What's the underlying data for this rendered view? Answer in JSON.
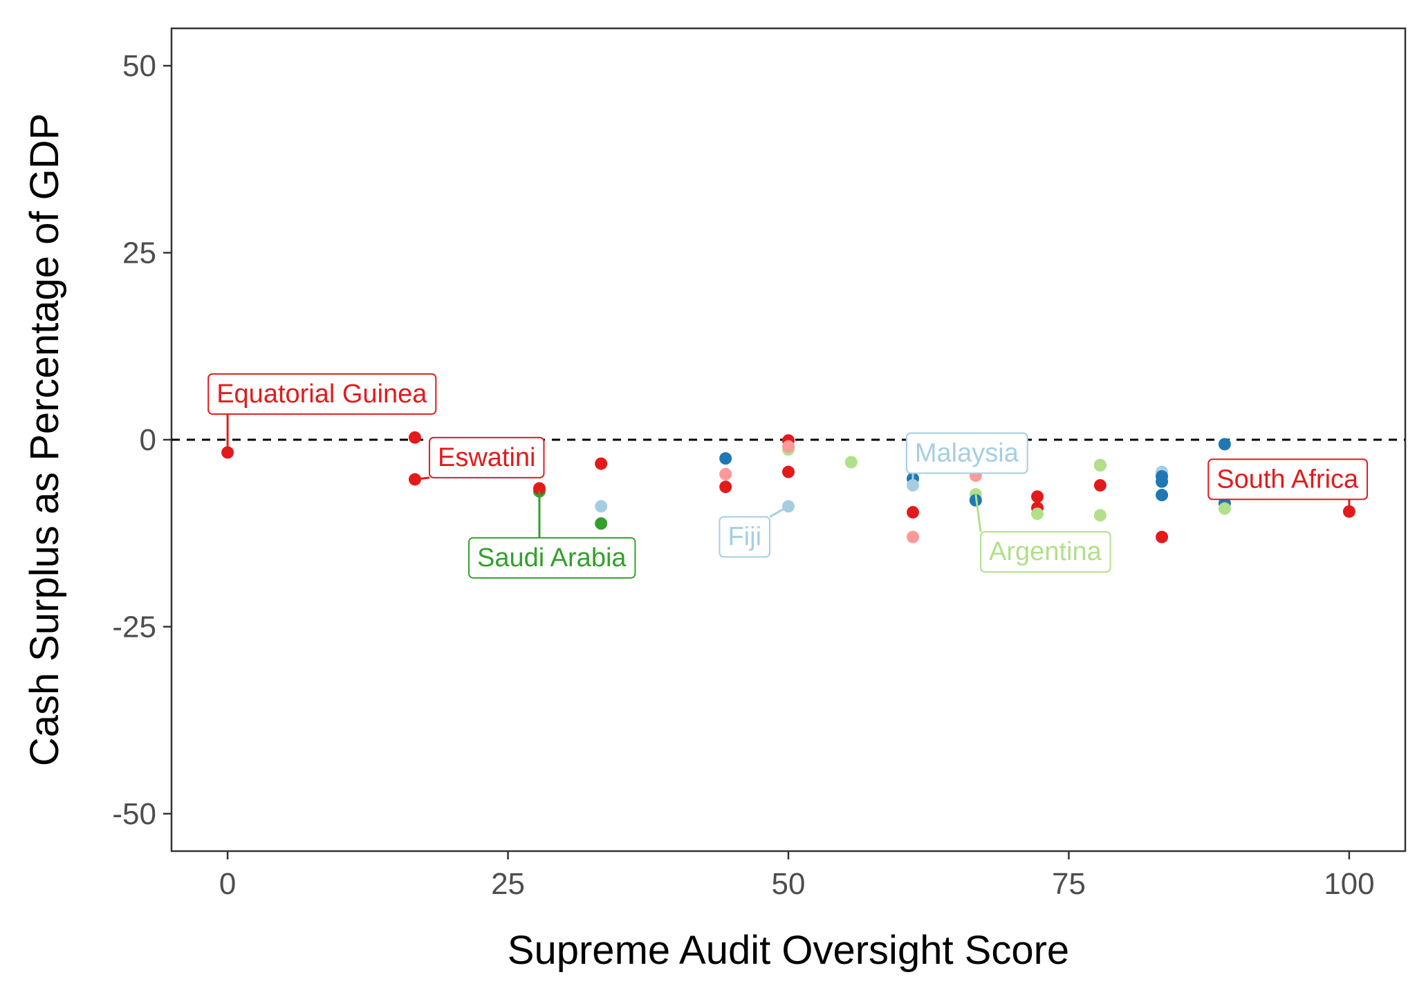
{
  "chart_data": {
    "type": "scatter",
    "title": "",
    "xlabel": "Supreme Audit Oversight Score",
    "ylabel": "Cash Surplus as Percentage of GDP",
    "xlim": [
      -5,
      105
    ],
    "ylim": [
      -55,
      55
    ],
    "xticks": [
      0,
      25,
      50,
      75,
      100
    ],
    "yticks": [
      -50,
      -25,
      0,
      25,
      50
    ],
    "xtick_labels": [
      "0",
      "25",
      "50",
      "75",
      "100"
    ],
    "ytick_labels": [
      "-50",
      "-25",
      "0",
      "25",
      "50"
    ],
    "reference_line": {
      "y": 0,
      "style": "dashed"
    },
    "grid": false,
    "legend": "none",
    "colors": {
      "red": "#e31a1c",
      "pink": "#fb9a99",
      "dark_blue": "#1f78b4",
      "light_blue": "#a6cee3",
      "dark_green": "#33a02c",
      "light_green": "#b2df8a"
    },
    "points": [
      {
        "x": 0,
        "y": -1.7,
        "color": "red"
      },
      {
        "x": 16.7,
        "y": 0.3,
        "color": "red"
      },
      {
        "x": 16.7,
        "y": -5.3,
        "color": "red"
      },
      {
        "x": 27.8,
        "y": -6.9,
        "color": "dark_green"
      },
      {
        "x": 27.8,
        "y": -6.5,
        "color": "red"
      },
      {
        "x": 33.3,
        "y": -3.2,
        "color": "red"
      },
      {
        "x": 33.3,
        "y": -8.9,
        "color": "light_blue"
      },
      {
        "x": 33.3,
        "y": -11.2,
        "color": "dark_green"
      },
      {
        "x": 44.4,
        "y": -2.5,
        "color": "dark_blue"
      },
      {
        "x": 44.4,
        "y": -4.6,
        "color": "pink"
      },
      {
        "x": 44.4,
        "y": -6.3,
        "color": "red"
      },
      {
        "x": 50,
        "y": -0.1,
        "color": "red"
      },
      {
        "x": 50,
        "y": -1.3,
        "color": "light_green"
      },
      {
        "x": 50,
        "y": -0.9,
        "color": "pink"
      },
      {
        "x": 50,
        "y": -4.3,
        "color": "red"
      },
      {
        "x": 50,
        "y": -8.9,
        "color": "light_blue"
      },
      {
        "x": 55.6,
        "y": -3.0,
        "color": "light_green"
      },
      {
        "x": 61.1,
        "y": -5.2,
        "color": "dark_blue"
      },
      {
        "x": 61.1,
        "y": -6.1,
        "color": "light_blue"
      },
      {
        "x": 61.1,
        "y": -9.7,
        "color": "red"
      },
      {
        "x": 61.1,
        "y": -13.0,
        "color": "pink"
      },
      {
        "x": 66.7,
        "y": -4.8,
        "color": "pink"
      },
      {
        "x": 66.7,
        "y": -7.3,
        "color": "light_green"
      },
      {
        "x": 66.7,
        "y": -8.1,
        "color": "dark_blue"
      },
      {
        "x": 72.2,
        "y": -7.6,
        "color": "red"
      },
      {
        "x": 72.2,
        "y": -9.1,
        "color": "red"
      },
      {
        "x": 72.2,
        "y": -9.9,
        "color": "light_green"
      },
      {
        "x": 77.8,
        "y": -3.4,
        "color": "dark_blue"
      },
      {
        "x": 77.8,
        "y": -3.4,
        "color": "light_green"
      },
      {
        "x": 77.8,
        "y": -6.1,
        "color": "red"
      },
      {
        "x": 77.8,
        "y": -10.1,
        "color": "light_green"
      },
      {
        "x": 83.3,
        "y": -4.3,
        "color": "light_blue"
      },
      {
        "x": 83.3,
        "y": -4.9,
        "color": "dark_blue"
      },
      {
        "x": 83.3,
        "y": -5.6,
        "color": "dark_blue"
      },
      {
        "x": 83.3,
        "y": -7.4,
        "color": "dark_blue"
      },
      {
        "x": 83.3,
        "y": -13.0,
        "color": "red"
      },
      {
        "x": 88.9,
        "y": -0.6,
        "color": "dark_blue"
      },
      {
        "x": 88.9,
        "y": -8.5,
        "color": "dark_blue"
      },
      {
        "x": 88.9,
        "y": -9.2,
        "color": "light_green"
      },
      {
        "x": 100,
        "y": -9.6,
        "color": "red"
      }
    ],
    "annotations": [
      {
        "label": "Equatorial Guinea",
        "color": "red",
        "x": 0,
        "y": -1.7,
        "label_x": 8.4,
        "label_y": 6.2
      },
      {
        "label": "Eswatini",
        "color": "red",
        "x": 16.7,
        "y": -5.3,
        "label_x": 23.1,
        "label_y": -2.3
      },
      {
        "label": "Saudi Arabia",
        "color": "dark_green",
        "x": 27.8,
        "y": -6.9,
        "label_x": 28.9,
        "label_y": -15.7
      },
      {
        "label": "Fiji",
        "color": "light_blue",
        "x": 50,
        "y": -8.9,
        "label_x": 46.1,
        "label_y": -12.9
      },
      {
        "label": "Malaysia",
        "color": "light_blue",
        "x": 61.1,
        "y": -6.1,
        "label_x": 65.9,
        "label_y": -1.7
      },
      {
        "label": "Argentina",
        "color": "light_green",
        "x": 66.7,
        "y": -7.3,
        "label_x": 72.9,
        "label_y": -14.9
      },
      {
        "label": "South Africa",
        "color": "red",
        "x": 100,
        "y": -9.6,
        "label_x": 94.5,
        "label_y": -5.2
      }
    ]
  }
}
